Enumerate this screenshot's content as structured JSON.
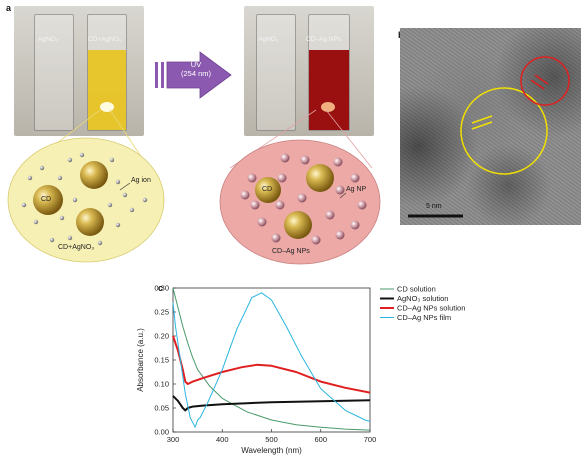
{
  "panel_a": {
    "letter": "a",
    "photo1": {
      "left_label": "AgNO₃",
      "right_label": "CD+AgNO₃"
    },
    "arrow": {
      "line1": "UV",
      "line2": "(254 nm)"
    },
    "photo2": {
      "left_label": "AgNO₃",
      "right_label": "CD–Ag NPs"
    },
    "schematic1": {
      "cd_label": "CD",
      "ion_label": "Ag ion",
      "caption": "CD+AgNO₃"
    },
    "schematic2": {
      "cd_label": "CD",
      "np_label": "Ag NP",
      "caption": "CD–Ag NPs"
    },
    "colors": {
      "yellow_liquid": "#e8c31e",
      "red_liquid": "#9a1010",
      "schem1_bg": "#f7f0b4",
      "schem2_bg": "#eca9a6",
      "arrow": "#8b5ab0"
    }
  },
  "panel_b": {
    "letter": "b",
    "scalebar_label": "5 nm",
    "colors": {
      "circle_large": "#f0e000",
      "circle_small": "#e02020"
    }
  },
  "panel_c": {
    "letter": "c",
    "chart_data": {
      "type": "line",
      "xlabel": "Wavelength (nm)",
      "ylabel": "Absorbance (a.u.)",
      "xlim": [
        300,
        700
      ],
      "ylim": [
        0.0,
        0.3
      ],
      "xticks": [
        "300",
        "400",
        "500",
        "600",
        "700"
      ],
      "yticks": [
        "0.00",
        "0.05",
        "0.10",
        "0.15",
        "0.20",
        "0.25",
        "0.30"
      ],
      "legend_position": "top-right",
      "grid": false,
      "series": [
        {
          "name": "CD solution",
          "color": "#4a9a6a",
          "x": [
            300,
            310,
            320,
            330,
            340,
            350,
            375,
            400,
            450,
            500,
            550,
            600,
            650,
            700
          ],
          "y": [
            0.3,
            0.26,
            0.22,
            0.185,
            0.155,
            0.13,
            0.095,
            0.07,
            0.042,
            0.025,
            0.015,
            0.01,
            0.006,
            0.004
          ]
        },
        {
          "name": "AgNO₃ solution",
          "color": "#111111",
          "x": [
            300,
            310,
            320,
            325,
            330,
            340,
            360,
            400,
            450,
            500,
            550,
            600,
            650,
            700
          ],
          "y": [
            0.075,
            0.065,
            0.05,
            0.045,
            0.05,
            0.053,
            0.055,
            0.058,
            0.06,
            0.062,
            0.063,
            0.064,
            0.065,
            0.066
          ]
        },
        {
          "name": "CD–Ag NPs solution",
          "color": "#e02020",
          "x": [
            300,
            310,
            320,
            325,
            330,
            340,
            360,
            400,
            440,
            470,
            500,
            550,
            600,
            650,
            700
          ],
          "y": [
            0.2,
            0.17,
            0.13,
            0.105,
            0.1,
            0.105,
            0.112,
            0.125,
            0.135,
            0.14,
            0.138,
            0.125,
            0.105,
            0.092,
            0.082
          ]
        },
        {
          "name": "CD–Ag NPs film",
          "color": "#2ab6e0",
          "x": [
            300,
            305,
            315,
            325,
            335,
            345,
            350,
            355,
            370,
            400,
            430,
            460,
            480,
            500,
            530,
            560,
            600,
            650,
            690,
            700
          ],
          "y": [
            0.27,
            0.22,
            0.15,
            0.08,
            0.03,
            0.01,
            0.025,
            0.03,
            0.06,
            0.13,
            0.215,
            0.28,
            0.29,
            0.275,
            0.22,
            0.16,
            0.09,
            0.045,
            0.025,
            0.022
          ]
        }
      ]
    }
  }
}
